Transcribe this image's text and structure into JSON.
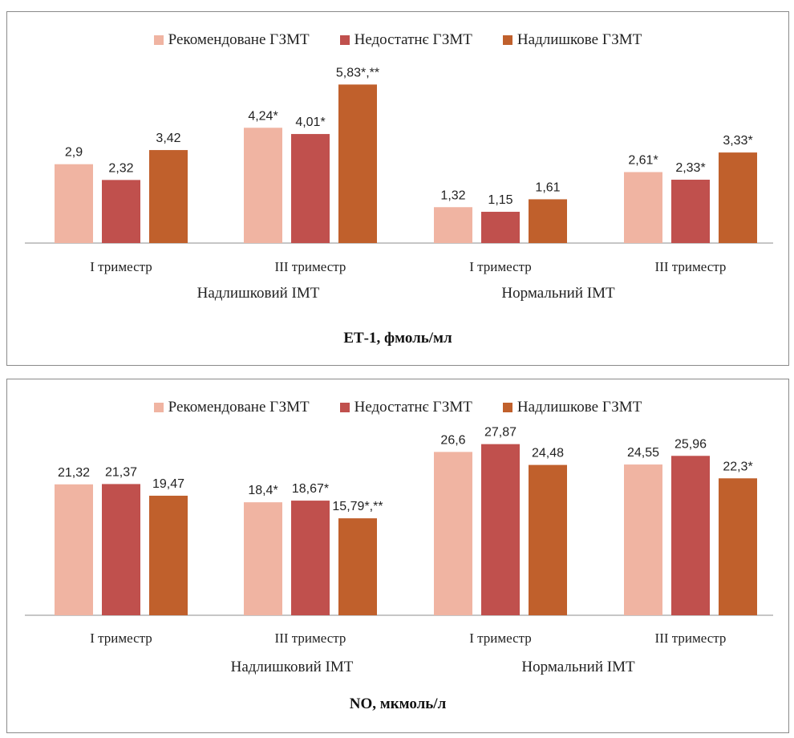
{
  "series_colors": [
    "#f0b4a2",
    "#c0504d",
    "#c0602c"
  ],
  "chart_data": [
    {
      "type": "bar",
      "title": "ЕТ-1, фмоль/мл",
      "legend": [
        "Рекомендоване ГЗМТ",
        "Недостатнє ГЗМТ",
        "Надлишкове ГЗМТ"
      ],
      "legend_position": "top",
      "grid": false,
      "ylim": [
        0,
        5.9
      ],
      "categories": [
        "І триместр",
        "ІІІ триместр",
        "І триместр",
        "ІІІ триместр"
      ],
      "groups": [
        {
          "label": "Надлишковий ІМТ",
          "categories": [
            "І триместр",
            "ІІІ триместр"
          ]
        },
        {
          "label": "Нормальний ІМТ",
          "categories": [
            "І триместр",
            "ІІІ триместр"
          ]
        }
      ],
      "series": [
        {
          "name": "Рекомендоване ГЗМТ",
          "values": [
            2.9,
            4.24,
            1.32,
            2.61
          ],
          "labels": [
            "2,9",
            "4,24*",
            "1,32",
            "2,61*"
          ]
        },
        {
          "name": "Недостатнє ГЗМТ",
          "values": [
            2.32,
            4.01,
            1.15,
            2.33
          ],
          "labels": [
            "2,32",
            "4,01*",
            "1,15",
            "2,33*"
          ]
        },
        {
          "name": "Надлишкове ГЗМТ",
          "values": [
            3.42,
            5.83,
            1.61,
            3.33
          ],
          "labels": [
            "3,42",
            "5,83*,**",
            "1,61",
            "3,33*"
          ]
        }
      ]
    },
    {
      "type": "bar",
      "title": "NO, мкмоль/л",
      "legend": [
        "Рекомендоване ГЗМТ",
        "Недостатнє ГЗМТ",
        "Надлишкове ГЗМТ"
      ],
      "legend_position": "top",
      "grid": false,
      "ylim": [
        0,
        29
      ],
      "categories": [
        "І триместр",
        "ІІІ триместр",
        "І триместр",
        "ІІІ триместр"
      ],
      "groups": [
        {
          "label": "Надлишковий ІМТ",
          "categories": [
            "І триместр",
            "ІІІ триместр"
          ]
        },
        {
          "label": "Нормальний ІМТ",
          "categories": [
            "І триместр",
            "ІІІ триместр"
          ]
        }
      ],
      "series": [
        {
          "name": "Рекомендоване ГЗМТ",
          "values": [
            21.32,
            18.4,
            26.6,
            24.55
          ],
          "labels": [
            "21,32",
            "18,4*",
            "26,6",
            "24,55"
          ]
        },
        {
          "name": "Недостатнє ГЗМТ",
          "values": [
            21.37,
            18.67,
            27.87,
            25.96
          ],
          "labels": [
            "21,37",
            "18,67*",
            "27,87",
            "25,96"
          ]
        },
        {
          "name": "Надлишкове ГЗМТ",
          "values": [
            19.47,
            15.79,
            24.48,
            22.3
          ],
          "labels": [
            "19,47",
            "15,79*,**",
            "24,48",
            "22,3*"
          ]
        }
      ]
    }
  ]
}
